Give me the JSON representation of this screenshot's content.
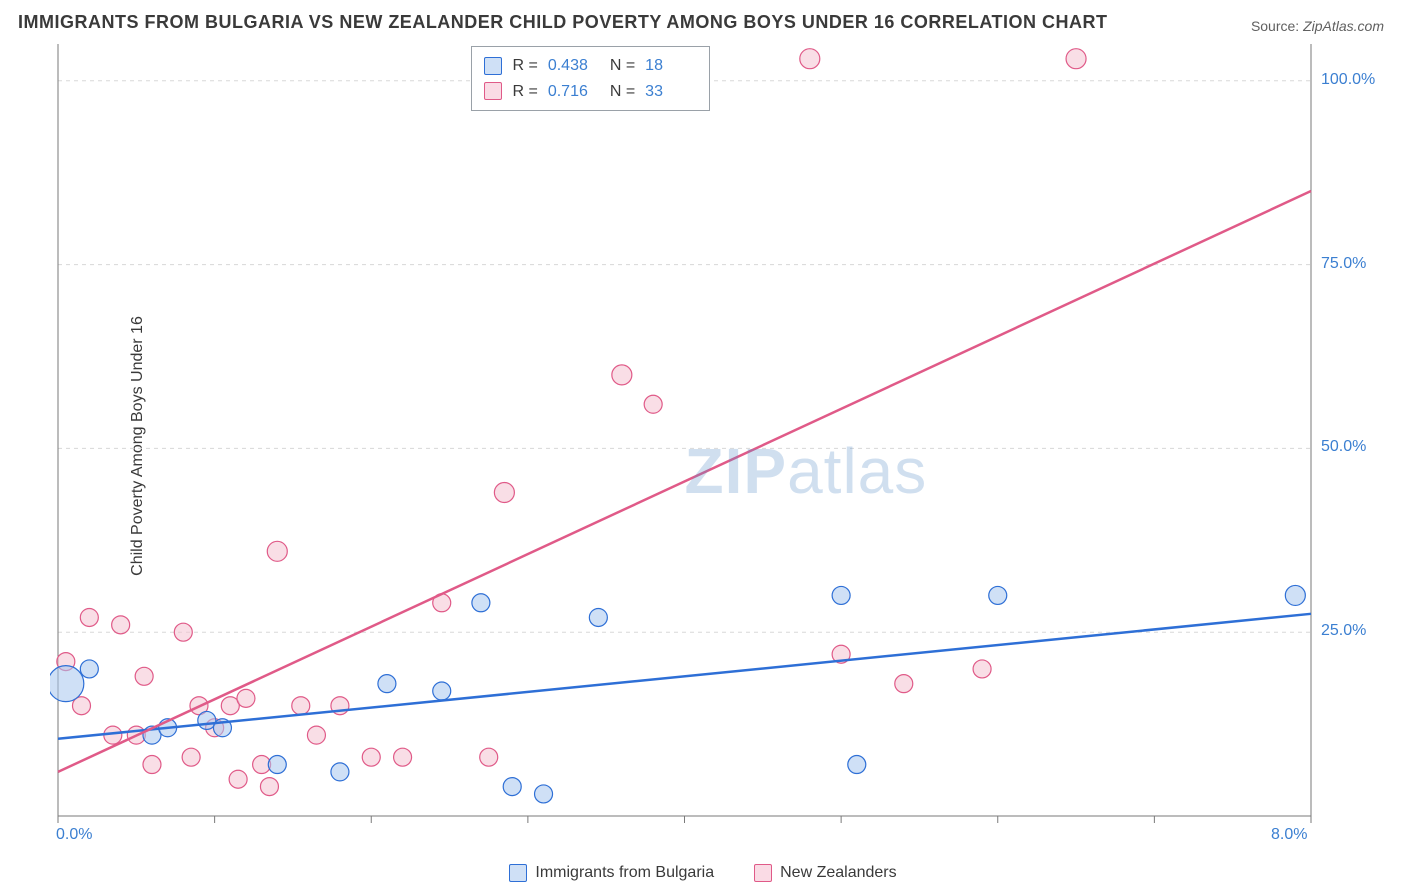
{
  "title": "IMMIGRANTS FROM BULGARIA VS NEW ZEALANDER CHILD POVERTY AMONG BOYS UNDER 16 CORRELATION CHART",
  "source_label": "Source:",
  "source_value": "ZipAtlas.com",
  "y_axis_label": "Child Poverty Among Boys Under 16",
  "watermark": {
    "bold": "ZIP",
    "rest": "atlas"
  },
  "chart": {
    "type": "scatter",
    "xlim": [
      0,
      8
    ],
    "ylim": [
      0,
      105
    ],
    "x_ticks": [
      0,
      1,
      2,
      3,
      4,
      5,
      6,
      7,
      8
    ],
    "x_tick_labels_visible": {
      "0": "0.0%",
      "8": "8.0%"
    },
    "y_ticks": [
      25,
      50,
      75,
      100
    ],
    "y_tick_labels": {
      "25": "25.0%",
      "50": "50.0%",
      "75": "75.0%",
      "100": "100.0%"
    },
    "grid_color": "#d8d8d8",
    "axis_color": "#7a7a7a",
    "background_color": "#ffffff",
    "tick_label_color": "#3b7fd1",
    "series": {
      "bulgaria": {
        "label": "Immigrants from Bulgaria",
        "stroke": "#2e6fd6",
        "fill": "#a7c6ee",
        "swatch_border": "#2e6fd6",
        "swatch_fill": "#cfe0f6",
        "R": "0.438",
        "N": "18",
        "trend": {
          "x1": 0,
          "y1": 10.5,
          "x2": 8,
          "y2": 27.5
        },
        "points": [
          {
            "x": 0.05,
            "y": 18,
            "r": 18
          },
          {
            "x": 0.2,
            "y": 20,
            "r": 9
          },
          {
            "x": 0.6,
            "y": 11,
            "r": 9
          },
          {
            "x": 0.7,
            "y": 12,
            "r": 9
          },
          {
            "x": 0.95,
            "y": 13,
            "r": 9
          },
          {
            "x": 1.05,
            "y": 12,
            "r": 9
          },
          {
            "x": 1.4,
            "y": 7,
            "r": 9
          },
          {
            "x": 1.8,
            "y": 6,
            "r": 9
          },
          {
            "x": 2.1,
            "y": 18,
            "r": 9
          },
          {
            "x": 2.45,
            "y": 17,
            "r": 9
          },
          {
            "x": 2.7,
            "y": 29,
            "r": 9
          },
          {
            "x": 2.9,
            "y": 4,
            "r": 9
          },
          {
            "x": 3.1,
            "y": 3,
            "r": 9
          },
          {
            "x": 3.45,
            "y": 27,
            "r": 9
          },
          {
            "x": 5.0,
            "y": 30,
            "r": 9
          },
          {
            "x": 5.1,
            "y": 7,
            "r": 9
          },
          {
            "x": 6.0,
            "y": 30,
            "r": 9
          },
          {
            "x": 7.9,
            "y": 30,
            "r": 10
          }
        ]
      },
      "nz": {
        "label": "New Zealanders",
        "stroke": "#e05a88",
        "fill": "#f4c2d2",
        "swatch_border": "#e05a88",
        "swatch_fill": "#fadbe5",
        "R": "0.716",
        "N": "33",
        "trend": {
          "x1": 0,
          "y1": 6,
          "x2": 8,
          "y2": 85
        },
        "points": [
          {
            "x": 0.05,
            "y": 21,
            "r": 9
          },
          {
            "x": 0.15,
            "y": 15,
            "r": 9
          },
          {
            "x": 0.2,
            "y": 27,
            "r": 9
          },
          {
            "x": 0.35,
            "y": 11,
            "r": 9
          },
          {
            "x": 0.4,
            "y": 26,
            "r": 9
          },
          {
            "x": 0.5,
            "y": 11,
            "r": 9
          },
          {
            "x": 0.55,
            "y": 19,
            "r": 9
          },
          {
            "x": 0.6,
            "y": 7,
            "r": 9
          },
          {
            "x": 0.8,
            "y": 25,
            "r": 9
          },
          {
            "x": 0.85,
            "y": 8,
            "r": 9
          },
          {
            "x": 0.9,
            "y": 15,
            "r": 9
          },
          {
            "x": 1.0,
            "y": 12,
            "r": 9
          },
          {
            "x": 1.1,
            "y": 15,
            "r": 9
          },
          {
            "x": 1.15,
            "y": 5,
            "r": 9
          },
          {
            "x": 1.2,
            "y": 16,
            "r": 9
          },
          {
            "x": 1.3,
            "y": 7,
            "r": 9
          },
          {
            "x": 1.35,
            "y": 4,
            "r": 9
          },
          {
            "x": 1.4,
            "y": 36,
            "r": 10
          },
          {
            "x": 1.55,
            "y": 15,
            "r": 9
          },
          {
            "x": 1.65,
            "y": 11,
            "r": 9
          },
          {
            "x": 1.8,
            "y": 15,
            "r": 9
          },
          {
            "x": 2.0,
            "y": 8,
            "r": 9
          },
          {
            "x": 2.2,
            "y": 8,
            "r": 9
          },
          {
            "x": 2.45,
            "y": 29,
            "r": 9
          },
          {
            "x": 2.75,
            "y": 8,
            "r": 9
          },
          {
            "x": 2.85,
            "y": 44,
            "r": 10
          },
          {
            "x": 3.6,
            "y": 60,
            "r": 10
          },
          {
            "x": 3.8,
            "y": 56,
            "r": 9
          },
          {
            "x": 4.8,
            "y": 103,
            "r": 10
          },
          {
            "x": 5.0,
            "y": 22,
            "r": 9
          },
          {
            "x": 5.4,
            "y": 18,
            "r": 9
          },
          {
            "x": 5.9,
            "y": 20,
            "r": 9
          },
          {
            "x": 6.5,
            "y": 103,
            "r": 10
          }
        ]
      }
    }
  }
}
